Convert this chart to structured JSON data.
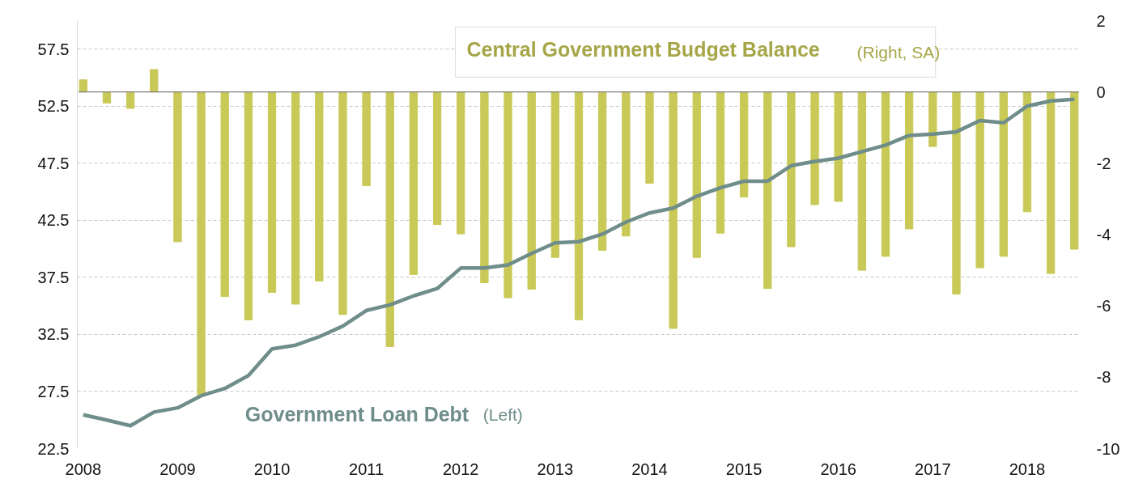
{
  "chart_data": {
    "type": "bar",
    "categories": [
      "2008",
      null,
      null,
      null,
      "2009",
      null,
      null,
      null,
      "2010",
      null,
      null,
      null,
      "2011",
      null,
      null,
      null,
      "2012",
      null,
      null,
      null,
      "2013",
      null,
      null,
      null,
      "2014",
      null,
      null,
      null,
      "2015",
      null,
      null,
      null,
      "2016",
      null,
      null,
      null,
      "2017",
      null,
      null,
      null,
      "2018",
      null,
      null
    ],
    "series": [
      {
        "name": "Central Government Budget Balance (Right, SA)",
        "axis": "y2",
        "color": "#c9c957",
        "values": [
          0.34,
          -0.31,
          -0.46,
          0.63,
          -4.2,
          -8.5,
          -5.74,
          -6.39,
          -5.62,
          -5.95,
          -5.3,
          -6.24,
          -2.63,
          -7.14,
          -5.12,
          -3.72,
          -3.98,
          -5.35,
          -5.77,
          -5.53,
          -4.64,
          -6.39,
          -4.44,
          -4.04,
          -2.56,
          -6.63,
          -4.64,
          -3.96,
          -2.95,
          -5.51,
          -4.34,
          -3.16,
          -3.07,
          -5.0,
          -4.61,
          -3.84,
          -1.53,
          -5.67,
          -4.93,
          -4.61,
          -3.36,
          -5.09,
          -4.41
        ]
      },
      {
        "name": "Government Loan Debt (Left)",
        "type": "line",
        "color": "#6f8d8a",
        "values": [
          25.46,
          25.0,
          24.5,
          25.7,
          26.07,
          27.13,
          27.77,
          28.9,
          31.24,
          31.56,
          32.3,
          33.23,
          34.6,
          35.09,
          35.88,
          36.52,
          38.32,
          38.32,
          38.59,
          39.6,
          40.52,
          40.63,
          41.29,
          42.35,
          43.15,
          43.57,
          44.61,
          45.35,
          45.93,
          45.93,
          47.29,
          47.66,
          47.95,
          48.53,
          49.09,
          49.94,
          50.05,
          50.26,
          51.24,
          51.05,
          52.51,
          52.96,
          53.1
        ]
      }
    ],
    "ylim": [
      22.5,
      60
    ],
    "yticks": [
      22.5,
      27.5,
      32.5,
      37.5,
      42.5,
      47.5,
      52.5,
      57.5
    ],
    "y2lim": [
      -10,
      2
    ],
    "y2ticks": [
      -10,
      -8,
      -6,
      -4,
      -2,
      0,
      2
    ],
    "grid": "y"
  }
}
